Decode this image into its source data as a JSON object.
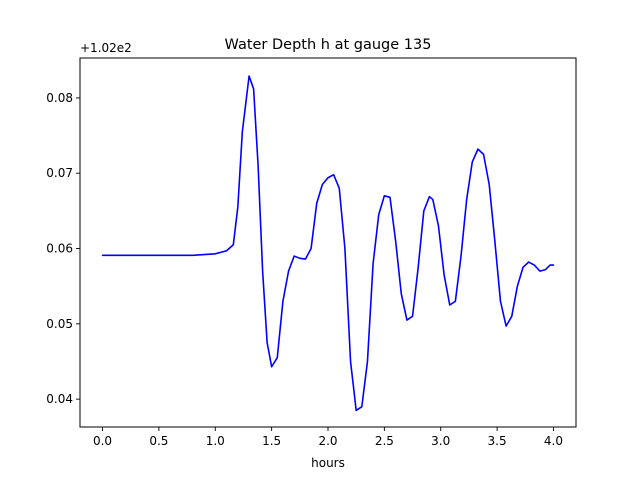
{
  "chart_data": {
    "type": "line",
    "title": "Water Depth h at gauge 135",
    "xlabel": "hours",
    "ylabel": "",
    "offset_label": "+1.02e2",
    "xlim": [
      -0.2,
      4.2
    ],
    "ylim": [
      0.0363,
      0.0853
    ],
    "xticks": [
      0.0,
      0.5,
      1.0,
      1.5,
      2.0,
      2.5,
      3.0,
      3.5,
      4.0
    ],
    "xtick_labels": [
      "0.0",
      "0.5",
      "1.0",
      "1.5",
      "2.0",
      "2.5",
      "3.0",
      "3.5",
      "4.0"
    ],
    "yticks": [
      0.04,
      0.05,
      0.06,
      0.07,
      0.08
    ],
    "ytick_labels": [
      "0.04",
      "0.05",
      "0.06",
      "0.07",
      "0.08"
    ],
    "grid": false,
    "series": [
      {
        "color": "#0000ff",
        "x": [
          0.0,
          0.5,
          0.8,
          1.0,
          1.1,
          1.16,
          1.2,
          1.24,
          1.3,
          1.34,
          1.38,
          1.42,
          1.46,
          1.5,
          1.55,
          1.6,
          1.65,
          1.7,
          1.75,
          1.8,
          1.85,
          1.9,
          1.95,
          2.0,
          2.05,
          2.1,
          2.15,
          2.2,
          2.25,
          2.3,
          2.35,
          2.4,
          2.45,
          2.5,
          2.55,
          2.6,
          2.65,
          2.7,
          2.75,
          2.8,
          2.85,
          2.9,
          2.93,
          2.98,
          3.03,
          3.08,
          3.13,
          3.18,
          3.23,
          3.28,
          3.33,
          3.38,
          3.43,
          3.48,
          3.53,
          3.58,
          3.63,
          3.68,
          3.73,
          3.78,
          3.83,
          3.88,
          3.93,
          3.97,
          4.0
        ],
        "y": [
          0.0591,
          0.0591,
          0.0591,
          0.0593,
          0.0597,
          0.0605,
          0.0655,
          0.0755,
          0.0829,
          0.0812,
          0.071,
          0.057,
          0.0475,
          0.0443,
          0.0455,
          0.053,
          0.057,
          0.059,
          0.0587,
          0.0586,
          0.06,
          0.066,
          0.0685,
          0.0694,
          0.0698,
          0.068,
          0.06,
          0.045,
          0.0385,
          0.039,
          0.045,
          0.058,
          0.0645,
          0.067,
          0.0668,
          0.061,
          0.054,
          0.0505,
          0.051,
          0.0575,
          0.065,
          0.0669,
          0.0665,
          0.063,
          0.0565,
          0.0525,
          0.053,
          0.059,
          0.0665,
          0.0715,
          0.0732,
          0.0725,
          0.0685,
          0.061,
          0.053,
          0.0497,
          0.051,
          0.055,
          0.0575,
          0.0582,
          0.0578,
          0.057,
          0.0572,
          0.0578,
          0.0578
        ]
      }
    ]
  }
}
